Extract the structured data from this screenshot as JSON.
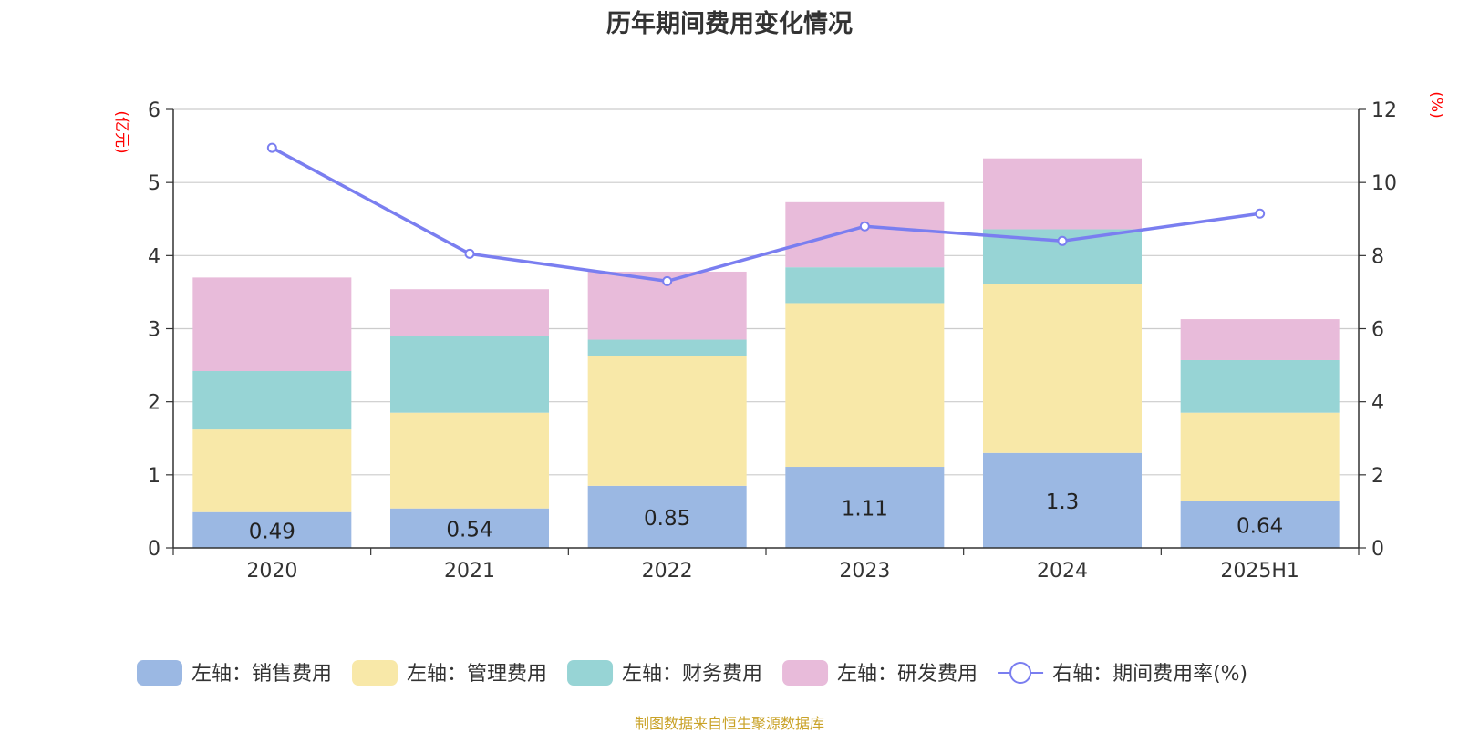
{
  "chart_data": {
    "type": "bar",
    "title": "历年期间费用变化情况",
    "categories": [
      "2020",
      "2021",
      "2022",
      "2023",
      "2024",
      "2025H1"
    ],
    "left_axis": {
      "label": "(亿元)",
      "min": 0,
      "max": 6,
      "ticks": [
        0,
        1,
        2,
        3,
        4,
        5,
        6
      ]
    },
    "right_axis": {
      "label": "(%)",
      "min": 0,
      "max": 12,
      "ticks": [
        0,
        2,
        4,
        6,
        8,
        10,
        12
      ]
    },
    "series": [
      {
        "name": "左轴：销售费用",
        "type": "bar",
        "axis": "left",
        "color": "#9bb8e3",
        "values": [
          0.49,
          0.54,
          0.85,
          1.11,
          1.3,
          0.64
        ],
        "labels": [
          "0.49",
          "0.54",
          "0.85",
          "1.11",
          "1.3",
          "0.64"
        ]
      },
      {
        "name": "左轴：管理费用",
        "type": "bar",
        "axis": "left",
        "color": "#f8e8a8",
        "values": [
          1.13,
          1.31,
          1.78,
          2.24,
          2.31,
          1.21
        ]
      },
      {
        "name": "左轴：财务费用",
        "type": "bar",
        "axis": "left",
        "color": "#97d4d5",
        "values": [
          0.8,
          1.05,
          0.22,
          0.49,
          0.75,
          0.72
        ]
      },
      {
        "name": "左轴：研发费用",
        "type": "bar",
        "axis": "left",
        "color": "#e8bbda",
        "values": [
          1.28,
          0.64,
          0.93,
          0.89,
          0.97,
          0.56
        ]
      },
      {
        "name": "右轴：期间费用率(%)",
        "type": "line",
        "axis": "right",
        "color": "#7a7ef0",
        "values": [
          10.95,
          8.05,
          7.3,
          8.8,
          8.4,
          9.15
        ]
      }
    ],
    "grid": true,
    "legend_position": "bottom"
  },
  "source": "制图数据来自恒生聚源数据库"
}
